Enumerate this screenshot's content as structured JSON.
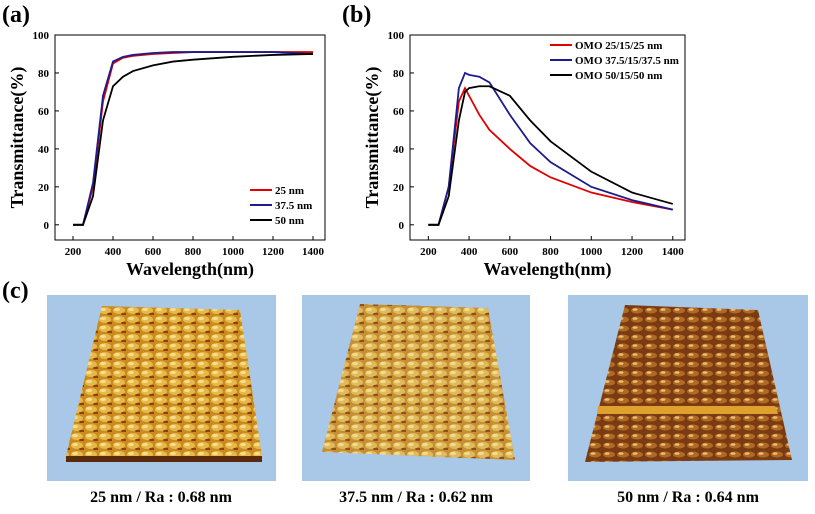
{
  "chart_data": [
    {
      "type": "line",
      "xlabel": "Wavelength(nm)",
      "ylabel": "Transmittance(%)",
      "x": [
        200,
        250,
        300,
        350,
        400,
        450,
        500,
        600,
        700,
        800,
        1000,
        1200,
        1400
      ],
      "series": [
        {
          "name": "25 nm",
          "color": "#e00000",
          "values": [
            0,
            0,
            20,
            65,
            85,
            88,
            89,
            90,
            90.5,
            91,
            91,
            91,
            91
          ]
        },
        {
          "name": "37.5 nm",
          "color": "#1c1c8c",
          "values": [
            0,
            0,
            22,
            68,
            86,
            88.5,
            89.5,
            90.5,
            91,
            91,
            91,
            91,
            90
          ]
        },
        {
          "name": "50 nm",
          "color": "#000000",
          "values": [
            0,
            0,
            15,
            55,
            73,
            78,
            81,
            84,
            86,
            87,
            88.5,
            89.5,
            90
          ]
        }
      ],
      "xlim": [
        110,
        1460
      ],
      "ylim": [
        -8,
        100
      ],
      "xticks": [
        200,
        400,
        600,
        800,
        1000,
        1200,
        1400
      ],
      "yticks": [
        0,
        20,
        40,
        60,
        80,
        100
      ],
      "grid": false,
      "legend": "lower right"
    },
    {
      "type": "line",
      "xlabel": "Wavelength(nm)",
      "ylabel": "Transmittance(%)",
      "x": [
        200,
        250,
        300,
        350,
        380,
        400,
        450,
        500,
        600,
        700,
        800,
        1000,
        1200,
        1400
      ],
      "series": [
        {
          "name": "OMO 25/15/25 nm",
          "color": "#e00000",
          "values": [
            0,
            0,
            20,
            65,
            72,
            68,
            58,
            50,
            40,
            31,
            25,
            17,
            12,
            8
          ]
        },
        {
          "name": "OMO 37.5/15/37.5 nm",
          "color": "#1c1c8c",
          "values": [
            0,
            0,
            20,
            72,
            80,
            79,
            78,
            75,
            58,
            43,
            33,
            20,
            13,
            8
          ]
        },
        {
          "name": "OMO 50/15/50 nm",
          "color": "#000000",
          "values": [
            0,
            0,
            15,
            55,
            70,
            72,
            73,
            73,
            68,
            55,
            44,
            28,
            17,
            11
          ]
        }
      ],
      "xlim": [
        110,
        1460
      ],
      "ylim": [
        -8,
        100
      ],
      "xticks": [
        200,
        400,
        600,
        800,
        1000,
        1200,
        1400
      ],
      "yticks": [
        0,
        20,
        40,
        60,
        80,
        100
      ],
      "grid": false,
      "legend": "upper right"
    }
  ],
  "panel_labels": [
    "(a)",
    "(b)",
    "(c)"
  ],
  "afm_captions": [
    "25 nm / Ra : 0.68 nm",
    "37.5 nm / Ra : 0.62 nm",
    "50 nm / Ra : 0.64 nm"
  ]
}
